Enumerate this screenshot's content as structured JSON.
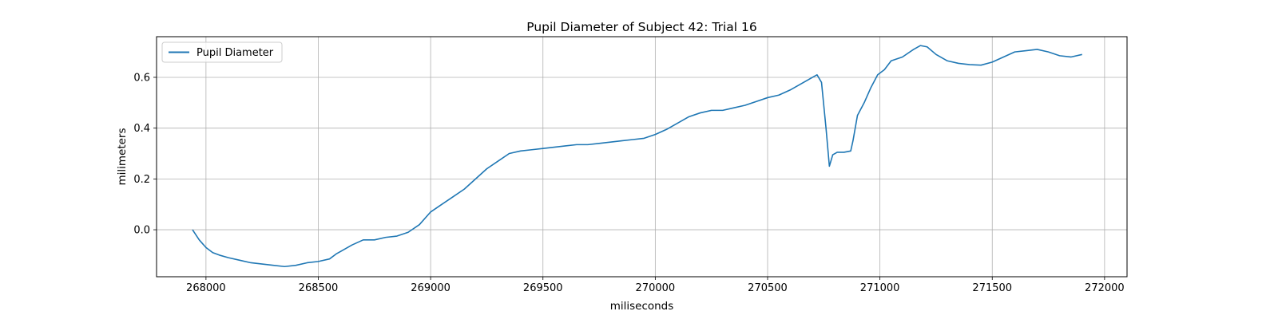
{
  "chart_data": {
    "type": "line",
    "title": "Pupil Diameter of Subject 42: Trial 16",
    "xlabel": "miliseconds",
    "ylabel": "milimeters",
    "xlim": [
      267780,
      272100
    ],
    "ylim": [
      -0.185,
      0.76
    ],
    "xticks": [
      268000,
      268500,
      269000,
      269500,
      270000,
      270500,
      271000,
      271500,
      272000
    ],
    "yticks": [
      0.0,
      0.2,
      0.4,
      0.6
    ],
    "ytick_labels": [
      "0.0",
      "0.2",
      "0.4",
      "0.6"
    ],
    "grid": true,
    "legend_position": "top-left",
    "series": [
      {
        "name": "Pupil Diameter",
        "color": "#1f77b4",
        "x": [
          267940,
          267970,
          268000,
          268030,
          268060,
          268100,
          268150,
          268200,
          268250,
          268300,
          268350,
          268400,
          268450,
          268500,
          268550,
          268580,
          268600,
          268650,
          268700,
          268750,
          268800,
          268850,
          268900,
          268950,
          269000,
          269050,
          269100,
          269150,
          269200,
          269250,
          269300,
          269350,
          269400,
          269450,
          269500,
          269550,
          269600,
          269650,
          269700,
          269750,
          269800,
          269850,
          269900,
          269950,
          270000,
          270050,
          270100,
          270150,
          270200,
          270250,
          270300,
          270350,
          270400,
          270450,
          270500,
          270550,
          270600,
          270650,
          270700,
          270720,
          270740,
          270760,
          270775,
          270790,
          270810,
          270840,
          270870,
          270880,
          270900,
          270930,
          270960,
          270990,
          271020,
          271050,
          271100,
          271150,
          271180,
          271210,
          271250,
          271300,
          271350,
          271400,
          271450,
          271500,
          271550,
          271600,
          271650,
          271700,
          271750,
          271800,
          271850,
          271900
        ],
        "y": [
          0.0,
          -0.04,
          -0.07,
          -0.09,
          -0.1,
          -0.11,
          -0.12,
          -0.13,
          -0.135,
          -0.14,
          -0.145,
          -0.14,
          -0.13,
          -0.125,
          -0.115,
          -0.095,
          -0.085,
          -0.06,
          -0.04,
          -0.04,
          -0.03,
          -0.025,
          -0.01,
          0.02,
          0.07,
          0.1,
          0.13,
          0.16,
          0.2,
          0.24,
          0.27,
          0.3,
          0.31,
          0.315,
          0.32,
          0.325,
          0.33,
          0.335,
          0.335,
          0.34,
          0.345,
          0.35,
          0.355,
          0.36,
          0.375,
          0.395,
          0.42,
          0.445,
          0.46,
          0.47,
          0.47,
          0.48,
          0.49,
          0.505,
          0.52,
          0.53,
          0.55,
          0.575,
          0.6,
          0.61,
          0.58,
          0.4,
          0.25,
          0.295,
          0.305,
          0.305,
          0.31,
          0.35,
          0.45,
          0.5,
          0.56,
          0.61,
          0.63,
          0.665,
          0.68,
          0.71,
          0.725,
          0.72,
          0.69,
          0.665,
          0.655,
          0.65,
          0.648,
          0.66,
          0.68,
          0.7,
          0.705,
          0.71,
          0.7,
          0.685,
          0.68,
          0.69
        ]
      }
    ]
  }
}
